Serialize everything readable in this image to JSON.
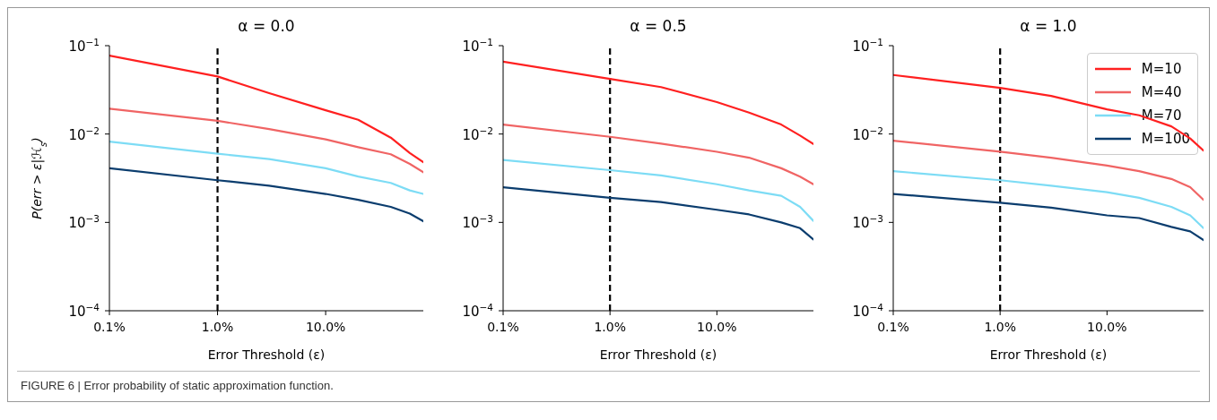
{
  "chart_data": [
    {
      "type": "line",
      "title": "α = 0.0",
      "xlabel": "Error Threshold (ε)",
      "ylabel": "P(err > ε|ℋ$_{s}$)",
      "log": "xy",
      "legend": false,
      "grid": false,
      "marker": "none",
      "line_style": "solid",
      "xlim": [
        0.1,
        80
      ],
      "ylim": [
        0.0001,
        0.1
      ],
      "xticks": [
        {
          "value": 0.1,
          "label": "0.1%"
        },
        {
          "value": 1,
          "label": "1.0%"
        },
        {
          "value": 10,
          "label": "10.0%"
        }
      ],
      "yticks": [
        {
          "value": 0.0001,
          "label": "10$^{−4}$"
        },
        {
          "value": 0.001,
          "label": "10$^{−3}$"
        },
        {
          "value": 0.01,
          "label": "10$^{−2}$"
        },
        {
          "value": 0.1,
          "label": "10$^{−1}$"
        }
      ],
      "x": [
        0.1,
        1,
        3,
        10,
        20,
        40,
        60,
        80
      ],
      "series": [
        {
          "color": "#ff2020",
          "values": [
            0.077,
            0.0448,
            0.029,
            0.0186,
            0.0145,
            0.0091,
            0.0061,
            0.0048
          ]
        },
        {
          "color": "#f06464",
          "values": [
            0.0194,
            0.0141,
            0.0114,
            0.0087,
            0.0071,
            0.0059,
            0.0046,
            0.0037
          ]
        },
        {
          "color": "#7ddcf5",
          "values": [
            0.0082,
            0.006,
            0.0052,
            0.0041,
            0.0033,
            0.0028,
            0.0023,
            0.0021
          ]
        },
        {
          "color": "#0b3d6e",
          "values": [
            0.0041,
            0.003,
            0.0026,
            0.0021,
            0.0018,
            0.0015,
            0.00126,
            0.00103
          ]
        }
      ],
      "ref_lines": [
        {
          "axis": "x",
          "value": 1,
          "color": "#000000",
          "line_style": "dashed"
        }
      ],
      "annotations": [
        "FIGURE 6 | Error probability of static approximation function."
      ]
    },
    {
      "type": "line",
      "title": "α = 0.5",
      "xlabel": "Error Threshold (ε)",
      "log": "xy",
      "legend": false,
      "grid": false,
      "marker": "none",
      "line_style": "solid",
      "xlim": [
        0.1,
        80
      ],
      "ylim": [
        0.0001,
        0.1
      ],
      "xticks": [
        {
          "value": 0.1,
          "label": "0.1%"
        },
        {
          "value": 1,
          "label": "1.0%"
        },
        {
          "value": 10,
          "label": "10.0%"
        }
      ],
      "yticks": [
        {
          "value": 0.0001,
          "label": "10$^{−4}$"
        },
        {
          "value": 0.001,
          "label": "10$^{−3}$"
        },
        {
          "value": 0.01,
          "label": "10$^{−2}$"
        },
        {
          "value": 0.1,
          "label": "10$^{−1}$"
        }
      ],
      "x": [
        0.1,
        1,
        3,
        10,
        20,
        40,
        60,
        80
      ],
      "series": [
        {
          "color": "#ff2020",
          "values": [
            0.066,
            0.042,
            0.034,
            0.023,
            0.0175,
            0.0128,
            0.0096,
            0.0077
          ]
        },
        {
          "color": "#f06464",
          "values": [
            0.0128,
            0.0093,
            0.0078,
            0.0063,
            0.0054,
            0.0041,
            0.0033,
            0.0027
          ]
        },
        {
          "color": "#7ddcf5",
          "values": [
            0.0051,
            0.0039,
            0.0034,
            0.0027,
            0.0023,
            0.002,
            0.0015,
            0.00104
          ]
        },
        {
          "color": "#0b3d6e",
          "values": [
            0.0025,
            0.0019,
            0.0017,
            0.00139,
            0.00123,
            0.001,
            0.00086,
            0.00064
          ]
        }
      ],
      "ref_lines": [
        {
          "axis": "x",
          "value": 1,
          "color": "#000000",
          "line_style": "dashed"
        }
      ]
    },
    {
      "type": "line",
      "title": "α = 1.0",
      "xlabel": "Error Threshold (ε)",
      "log": "xy",
      "legend": "top right",
      "grid": false,
      "marker": "none",
      "line_style": "solid",
      "xlim": [
        0.1,
        80
      ],
      "ylim": [
        0.0001,
        0.1
      ],
      "xticks": [
        {
          "value": 0.1,
          "label": "0.1%"
        },
        {
          "value": 1,
          "label": "1.0%"
        },
        {
          "value": 10,
          "label": "10.0%"
        }
      ],
      "yticks": [
        {
          "value": 0.0001,
          "label": "10$^{−4}$"
        },
        {
          "value": 0.001,
          "label": "10$^{−3}$"
        },
        {
          "value": 0.01,
          "label": "10$^{−2}$"
        },
        {
          "value": 0.1,
          "label": "10$^{−1}$"
        }
      ],
      "x": [
        0.1,
        1,
        3,
        10,
        20,
        40,
        60,
        80
      ],
      "series": [
        {
          "name": "M=10",
          "color": "#ff2020",
          "values": [
            0.0466,
            0.0333,
            0.027,
            0.019,
            0.0163,
            0.0122,
            0.0089,
            0.0065
          ]
        },
        {
          "name": "M=40",
          "color": "#f06464",
          "values": [
            0.0084,
            0.0063,
            0.0054,
            0.0044,
            0.0038,
            0.0031,
            0.0025,
            0.0018
          ]
        },
        {
          "name": "M=70",
          "color": "#7ddcf5",
          "values": [
            0.0038,
            0.003,
            0.0026,
            0.0022,
            0.0019,
            0.0015,
            0.0012,
            0.00086
          ]
        },
        {
          "name": "M=100",
          "color": "#0b3d6e",
          "values": [
            0.0021,
            0.00167,
            0.00147,
            0.0012,
            0.00112,
            0.00089,
            0.00079,
            0.00063
          ]
        }
      ],
      "ref_lines": [
        {
          "axis": "x",
          "value": 1,
          "color": "#000000",
          "line_style": "dashed"
        }
      ]
    }
  ]
}
